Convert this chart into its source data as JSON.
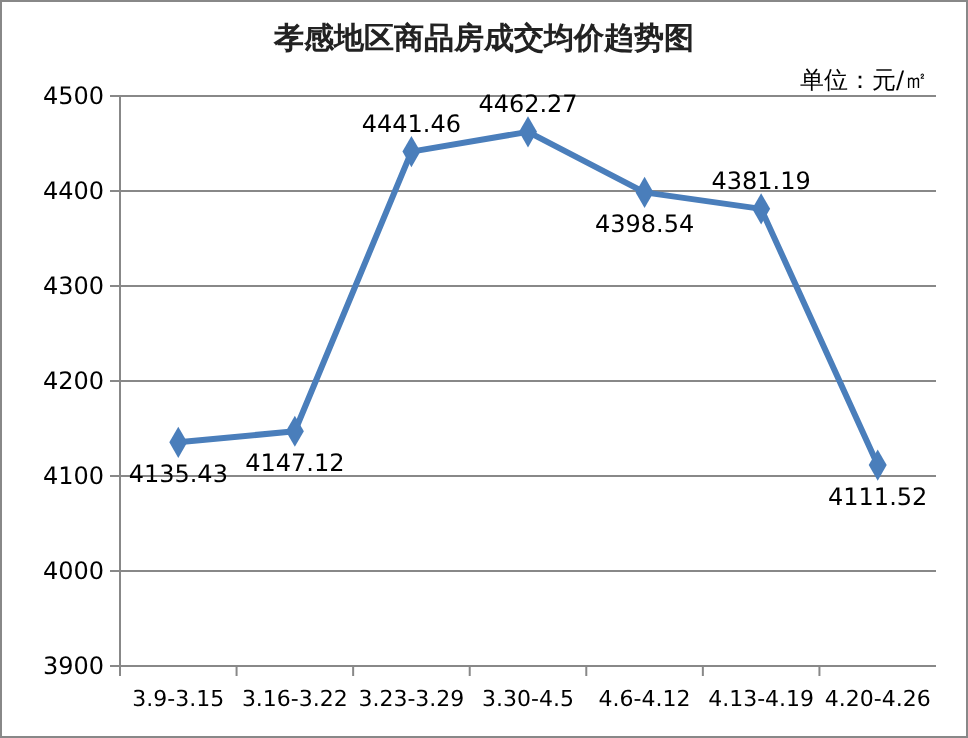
{
  "chart_data": {
    "type": "line",
    "title": "孝感地区商品房成交均价趋势图",
    "annotations": [
      "单位：元/㎡"
    ],
    "categories": [
      "3.9-3.15",
      "3.16-3.22",
      "3.23-3.29",
      "3.30-4.5",
      "4.6-4.12",
      "4.13-4.19",
      "4.20-4.26"
    ],
    "series": [
      {
        "color": "#4a7ebb",
        "values": [
          4135.43,
          4147.12,
          4441.46,
          4462.27,
          4398.54,
          4381.19,
          4111.52
        ]
      }
    ],
    "ylim": [
      3900,
      4500
    ],
    "yticks": [
      3900,
      4000,
      4100,
      4200,
      4300,
      4400,
      4500
    ],
    "grid": "y",
    "marker": "diamond",
    "line_style": "solid",
    "data_labels": true
  }
}
